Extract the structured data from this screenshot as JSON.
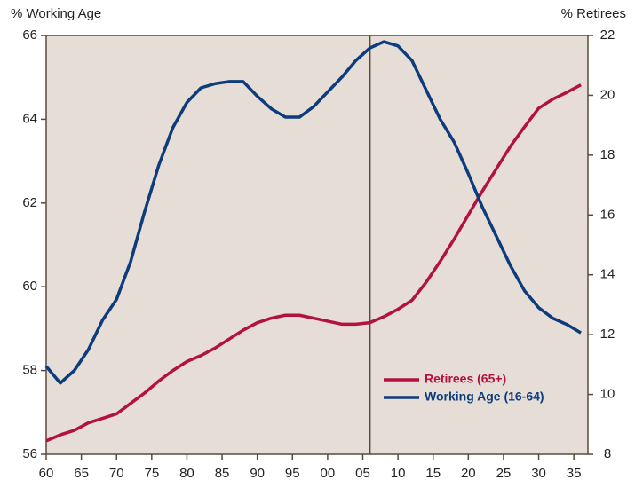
{
  "chart_data": {
    "type": "line",
    "y_label": "% Working Age",
    "y2_label": "% Retirees",
    "x": [
      1960,
      1962,
      1964,
      1966,
      1968,
      1970,
      1972,
      1974,
      1976,
      1978,
      1980,
      1982,
      1984,
      1986,
      1988,
      1990,
      1992,
      1994,
      1996,
      1998,
      2000,
      2002,
      2004,
      2006,
      2008,
      2010,
      2012,
      2014,
      2016,
      2018,
      2020,
      2022,
      2024,
      2026,
      2028,
      2030,
      2032,
      2034,
      2036
    ],
    "series": [
      {
        "name": "Retirees (65+)",
        "color": "#b3123e",
        "axis": "y2",
        "values": [
          8.45,
          8.65,
          8.8,
          9.05,
          9.2,
          9.35,
          9.7,
          10.05,
          10.45,
          10.8,
          11.1,
          11.3,
          11.55,
          11.85,
          12.15,
          12.4,
          12.55,
          12.65,
          12.65,
          12.55,
          12.45,
          12.35,
          12.35,
          12.4,
          12.6,
          12.85,
          13.15,
          13.75,
          14.45,
          15.2,
          16.0,
          16.8,
          17.55,
          18.3,
          18.95,
          19.57,
          19.87,
          20.1,
          20.35
        ]
      },
      {
        "name": "Working Age (16-64)",
        "color": "#0d3c7d",
        "values": [
          58.1,
          57.7,
          58.0,
          58.5,
          59.2,
          59.7,
          60.6,
          61.8,
          62.9,
          63.8,
          64.4,
          64.75,
          64.85,
          64.9,
          64.9,
          64.55,
          64.25,
          64.05,
          64.05,
          64.3,
          64.65,
          65.0,
          65.4,
          65.7,
          65.85,
          65.75,
          65.4,
          64.7,
          64.0,
          63.45,
          62.7,
          61.9,
          61.2,
          60.5,
          59.9,
          59.5,
          59.25,
          59.1,
          58.9
        ]
      }
    ],
    "xlim": [
      1960,
      2037
    ],
    "xticks": [
      {
        "value": 1960,
        "label": "60"
      },
      {
        "value": 1965,
        "label": "65"
      },
      {
        "value": 1970,
        "label": "70"
      },
      {
        "value": 1975,
        "label": "75"
      },
      {
        "value": 1980,
        "label": "80"
      },
      {
        "value": 1985,
        "label": "85"
      },
      {
        "value": 1990,
        "label": "90"
      },
      {
        "value": 1995,
        "label": "95"
      },
      {
        "value": 2000,
        "label": "00"
      },
      {
        "value": 2005,
        "label": "05"
      },
      {
        "value": 2010,
        "label": "10"
      },
      {
        "value": 2015,
        "label": "15"
      },
      {
        "value": 2020,
        "label": "20"
      },
      {
        "value": 2025,
        "label": "25"
      },
      {
        "value": 2030,
        "label": "30"
      },
      {
        "value": 2035,
        "label": "35"
      }
    ],
    "ylim": [
      56,
      66
    ],
    "yticks": [
      56,
      58,
      60,
      62,
      64,
      66
    ],
    "y2lim": [
      8,
      22
    ],
    "y2ticks": [
      8,
      10,
      12,
      14,
      16,
      18,
      20,
      22
    ],
    "vline": 2006,
    "legend": "lower right",
    "background": "#e6ddd6"
  }
}
